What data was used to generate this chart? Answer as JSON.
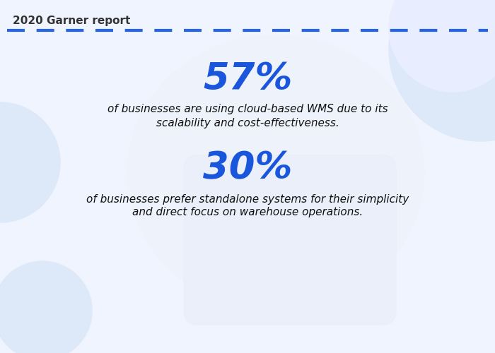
{
  "bg_color": "#f0f4ff",
  "circle_color": "#dde8f8",
  "circle_color2": "#e8eeff",
  "title": "2020 Garner report",
  "title_color": "#333333",
  "title_fontsize": 11,
  "dashed_line_color": "#2563eb",
  "stat1_value": "57%",
  "stat1_color": "#1a56db",
  "stat1_fontsize": 38,
  "stat1_desc_line1": "of businesses are using cloud-based WMS due to its",
  "stat1_desc_line2": "scalability and cost-effectiveness.",
  "stat1_desc_color": "#111111",
  "stat1_desc_fontsize": 11,
  "stat2_value": "30%",
  "stat2_color": "#1a56db",
  "stat2_fontsize": 38,
  "stat2_desc_line1": "of businesses prefer standalone systems for their simplicity",
  "stat2_desc_line2": "and direct focus on warehouse operations.",
  "stat2_desc_color": "#111111",
  "stat2_desc_fontsize": 11,
  "figsize": [
    7.0,
    5.0
  ],
  "dpi": 100
}
